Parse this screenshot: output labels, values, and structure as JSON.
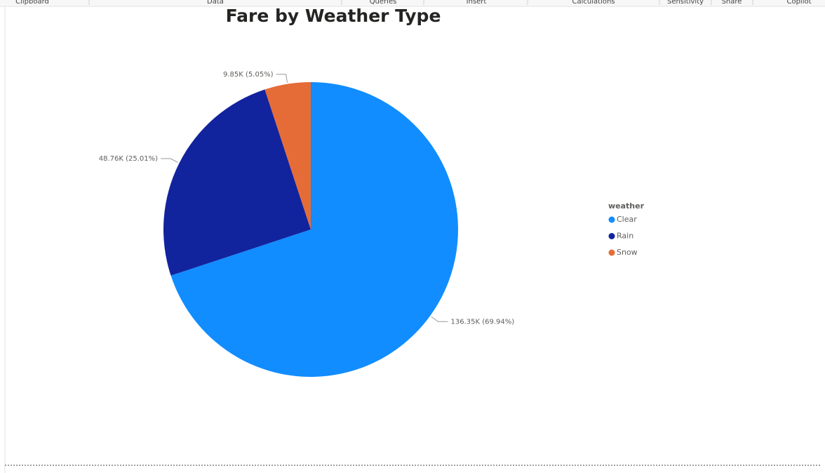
{
  "ribbon": [
    "Clipboard",
    "Data",
    "Queries",
    "Insert",
    "Calculations",
    "Sensitivity",
    "Share",
    "Copilot"
  ],
  "chart_data": {
    "type": "pie",
    "title": "Fare by Weather Type",
    "legend_title": "weather",
    "categories": [
      "Clear",
      "Rain",
      "Snow"
    ],
    "values": [
      136.35,
      48.76,
      9.85
    ],
    "value_labels": [
      "136.35K (69.94%)",
      "48.76K (25.01%)",
      "9.85K (5.05%)"
    ],
    "colors": [
      "#118DFF",
      "#12239E",
      "#E66C37"
    ],
    "legend": "right"
  }
}
